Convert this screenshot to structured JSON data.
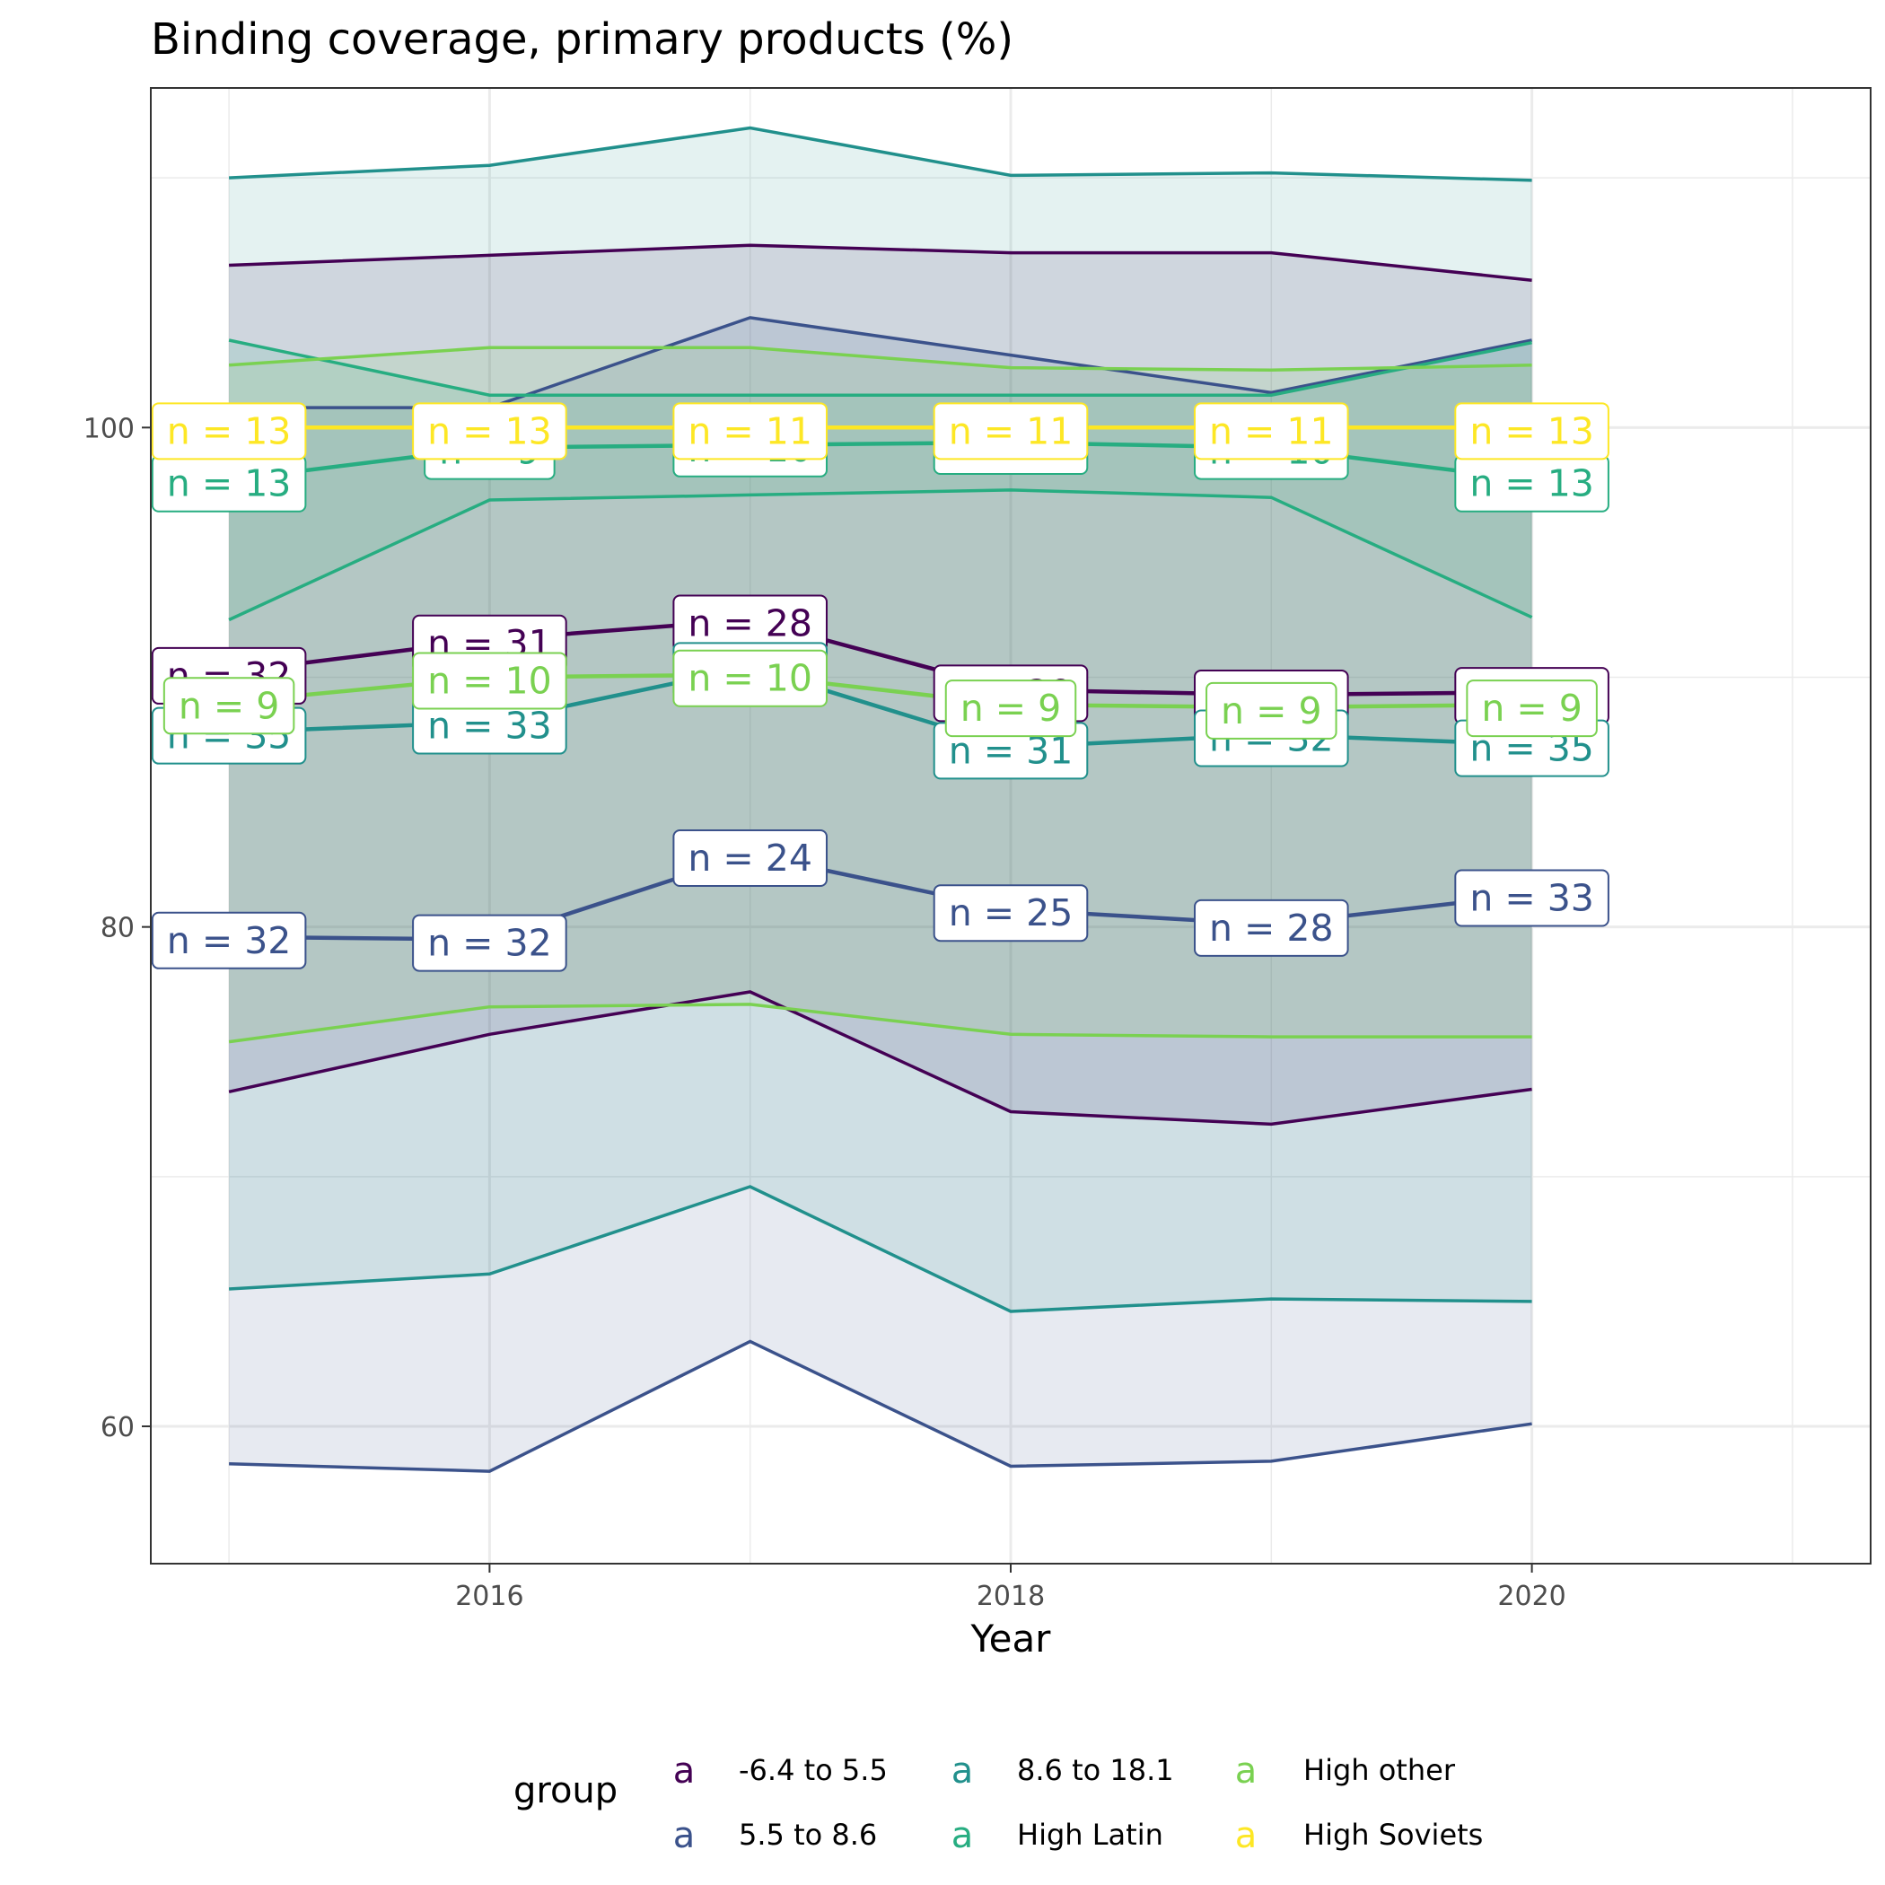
{
  "chart_data": {
    "type": "line",
    "title": "Binding coverage, primary products (%)",
    "xlabel": "Year",
    "ylabel": "",
    "x": [
      2015,
      2016,
      2017,
      2018,
      2019,
      2020
    ],
    "xlim": [
      2014.7,
      2021.3
    ],
    "ylim": [
      54.5,
      113.6
    ],
    "x_ticks": [
      2016,
      2018,
      2020
    ],
    "x_tick_labels": [
      "2016",
      "2018",
      "2020"
    ],
    "x_minor_ticks": [
      2015,
      2017,
      2019,
      2021
    ],
    "y_ticks": [
      60,
      80,
      100
    ],
    "y_tick_labels": [
      "60",
      "80",
      "100"
    ],
    "y_minor_ticks": [
      70,
      90,
      110
    ],
    "grid": true,
    "legend": {
      "title": "group",
      "position": "bottom",
      "key_glyph": "a"
    },
    "series": [
      {
        "name": "-6.4 to 5.5",
        "color": "#440154",
        "values": [
          90.2,
          91.5,
          92.3,
          89.5,
          89.3,
          89.4
        ],
        "upper": [
          106.5,
          106.9,
          107.3,
          107.0,
          107.0,
          105.9
        ],
        "lower": [
          73.4,
          75.7,
          77.4,
          72.6,
          72.1,
          73.5
        ],
        "n": [
          "n = 32",
          "n = 31",
          "n = 28",
          "n = 29",
          "n = 30",
          "n = 31"
        ]
      },
      {
        "name": "5.5 to 8.6",
        "color": "#3b528b",
        "values": [
          79.6,
          79.5,
          82.9,
          80.7,
          80.1,
          81.3
        ],
        "upper": [
          100.8,
          100.8,
          104.4,
          102.9,
          101.4,
          103.5
        ],
        "lower": [
          58.5,
          58.2,
          63.4,
          58.4,
          58.6,
          60.1
        ],
        "n": [
          "n = 32",
          "n = 32",
          "n = 24",
          "n = 25",
          "n = 28",
          "n = 33"
        ]
      },
      {
        "name": "8.6 to 18.1",
        "color": "#21908c",
        "values": [
          87.8,
          88.2,
          90.4,
          87.2,
          87.7,
          87.3
        ],
        "upper": [
          110.0,
          110.5,
          112.0,
          110.1,
          110.2,
          109.9
        ],
        "lower": [
          65.5,
          66.1,
          69.6,
          64.6,
          65.1,
          65.0
        ],
        "n": [
          "n = 35",
          "n = 33",
          "n = 30",
          "n = 31",
          "n = 32",
          "n = 35"
        ]
      },
      {
        "name": "High Latin",
        "color": "#27ad81",
        "values": [
          97.9,
          99.2,
          99.3,
          99.4,
          99.2,
          97.9
        ],
        "upper": [
          103.5,
          101.3,
          101.3,
          101.3,
          101.3,
          103.4
        ],
        "lower": [
          92.3,
          97.1,
          97.3,
          97.5,
          97.2,
          92.4
        ],
        "n": [
          "n = 13",
          "n = 9",
          "n = 10",
          "n = 10",
          "n = 10",
          "n = 13"
        ]
      },
      {
        "name": "High other",
        "color": "#7ad151",
        "values": [
          89.0,
          90.0,
          90.1,
          88.9,
          88.8,
          88.9
        ],
        "upper": [
          102.5,
          103.2,
          103.2,
          102.4,
          102.3,
          102.5
        ],
        "lower": [
          75.4,
          76.8,
          76.9,
          75.7,
          75.6,
          75.6
        ],
        "n": [
          "n = 9",
          "n = 10",
          "n = 10",
          "n = 9",
          "n = 9",
          "n = 9"
        ]
      },
      {
        "name": "High Soviets",
        "color": "#fde725",
        "values": [
          100.0,
          100.0,
          100.0,
          100.0,
          100.0,
          100.0
        ],
        "upper": [
          100.0,
          100.0,
          100.0,
          100.0,
          100.0,
          100.0
        ],
        "lower": [
          100.0,
          100.0,
          100.0,
          100.0,
          100.0,
          100.0
        ],
        "n": [
          "n = 13",
          "n = 13",
          "n = 11",
          "n = 11",
          "n = 11",
          "n = 13"
        ]
      }
    ]
  }
}
